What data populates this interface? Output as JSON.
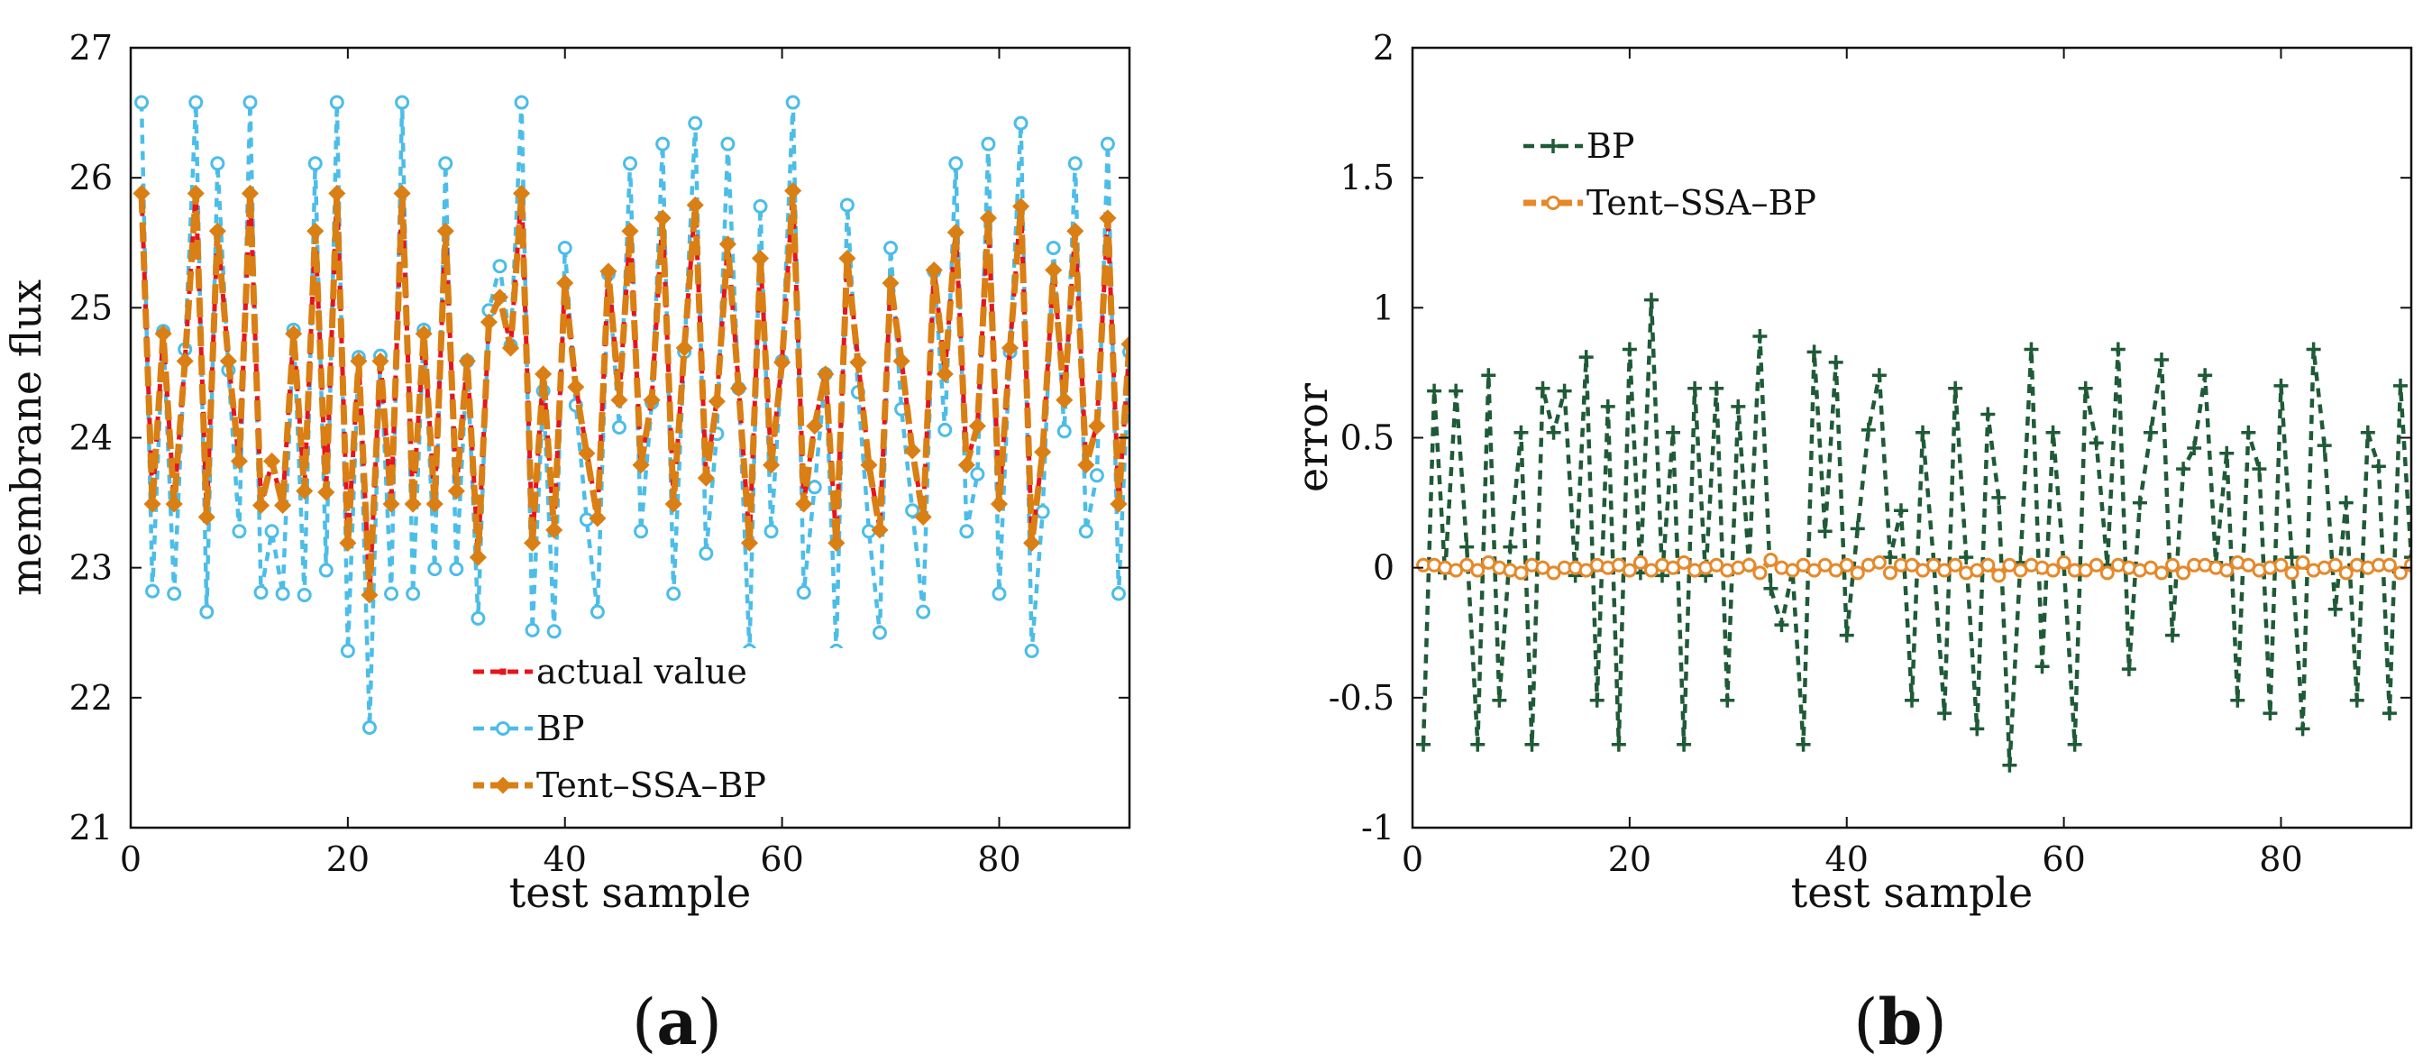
{
  "chart_data": [
    {
      "id": "a",
      "type": "line",
      "panel_label": "a",
      "xlabel": "test sample",
      "ylabel": "membrane flux",
      "xlim": [
        0,
        92
      ],
      "ylim": [
        21,
        27
      ],
      "xticks": [
        0,
        20,
        40,
        60,
        80
      ],
      "yticks": [
        21,
        22,
        23,
        24,
        25,
        26,
        27
      ],
      "legend_position": "bottom-center",
      "x": [
        1,
        2,
        3,
        4,
        5,
        6,
        7,
        8,
        9,
        10,
        11,
        12,
        13,
        14,
        15,
        16,
        17,
        18,
        19,
        20,
        21,
        22,
        23,
        24,
        25,
        26,
        27,
        28,
        29,
        30,
        31,
        32,
        33,
        34,
        35,
        36,
        37,
        38,
        39,
        40,
        41,
        42,
        43,
        44,
        45,
        46,
        47,
        48,
        49,
        50,
        51,
        52,
        53,
        54,
        55,
        56,
        57,
        58,
        59,
        60,
        61,
        62,
        63,
        64,
        65,
        66,
        67,
        68,
        69,
        70,
        71,
        72,
        73,
        74,
        75,
        76,
        77,
        78,
        79,
        80,
        81,
        82,
        83,
        84,
        85,
        86,
        87,
        88,
        89,
        90,
        91,
        92
      ],
      "series": [
        {
          "name": "actual value",
          "color": "#e8141c",
          "marker": "square",
          "values": [
            25.9,
            23.5,
            24.8,
            23.5,
            24.6,
            25.9,
            23.4,
            25.6,
            24.6,
            23.8,
            25.9,
            23.5,
            23.8,
            23.5,
            24.8,
            23.6,
            25.6,
            23.6,
            25.9,
            23.2,
            24.6,
            22.8,
            24.6,
            23.5,
            25.9,
            23.5,
            24.8,
            23.5,
            25.6,
            23.6,
            24.6,
            23.1,
            24.9,
            25.1,
            24.7,
            25.9,
            23.2,
            24.5,
            23.3,
            25.2,
            24.4,
            23.9,
            23.4,
            25.3,
            24.3,
            25.6,
            23.8,
            24.3,
            25.7,
            23.5,
            24.7,
            25.8,
            23.7,
            24.3,
            25.5,
            24.4,
            23.2,
            25.4,
            23.8,
            24.6,
            25.9,
            23.5,
            24.1,
            24.5,
            23.2,
            25.4,
            24.6,
            23.8,
            23.3,
            25.2,
            24.6,
            23.9,
            23.4,
            25.3,
            24.5,
            25.6,
            23.8,
            24.1,
            25.7,
            23.5,
            24.7,
            25.8,
            23.2,
            23.9,
            25.3,
            24.3,
            25.6,
            23.8,
            24.1,
            25.7,
            23.5,
            24.7
          ]
        },
        {
          "name": "BP",
          "color": "#4cbde8",
          "marker": "circle",
          "values": [
            26.58,
            22.82,
            24.82,
            22.8,
            24.68,
            26.58,
            22.66,
            26.11,
            24.52,
            23.28,
            26.58,
            22.81,
            23.28,
            22.8,
            24.83,
            22.79,
            26.11,
            22.98,
            26.58,
            22.36,
            24.62,
            21.77,
            24.63,
            22.8,
            26.58,
            22.8,
            24.83,
            22.99,
            26.11,
            22.99,
            24.59,
            22.61,
            24.98,
            25.32,
            24.71,
            26.58,
            22.52,
            24.36,
            22.51,
            25.46,
            24.25,
            23.37,
            22.66,
            25.26,
            24.08,
            26.11,
            23.28,
            24.27,
            26.26,
            22.8,
            24.66,
            26.42,
            23.11,
            24.03,
            26.26,
            24.38,
            22.36,
            25.78,
            23.28,
            24.59,
            26.58,
            22.81,
            23.62,
            24.49,
            22.36,
            25.79,
            24.35,
            23.28,
            22.5,
            25.46,
            24.22,
            23.44,
            22.66,
            25.28,
            24.06,
            26.11,
            23.28,
            23.72,
            26.26,
            22.8,
            24.66,
            26.42,
            22.36,
            23.43,
            25.46,
            24.05,
            26.11,
            23.28,
            23.71,
            26.26,
            22.8,
            24.66
          ]
        },
        {
          "name": "Tent–SSA–BP",
          "color": "#d97f14",
          "marker": "diamond",
          "values": [
            25.88,
            23.49,
            24.8,
            23.49,
            24.59,
            25.88,
            23.39,
            25.59,
            24.59,
            23.82,
            25.88,
            23.48,
            23.82,
            23.48,
            24.8,
            23.59,
            25.59,
            23.58,
            25.88,
            23.19,
            24.59,
            22.79,
            24.59,
            23.49,
            25.88,
            23.49,
            24.8,
            23.49,
            25.59,
            23.59,
            24.59,
            23.08,
            24.89,
            25.08,
            24.69,
            25.88,
            23.19,
            24.49,
            23.29,
            25.19,
            24.39,
            23.88,
            23.38,
            25.28,
            24.29,
            25.59,
            23.79,
            24.29,
            25.69,
            23.49,
            24.69,
            25.79,
            23.69,
            24.28,
            25.49,
            24.38,
            23.19,
            25.38,
            23.79,
            24.58,
            25.9,
            23.49,
            24.09,
            24.49,
            23.19,
            25.38,
            24.58,
            23.79,
            23.29,
            25.19,
            24.59,
            23.9,
            23.39,
            25.29,
            24.49,
            25.58,
            23.79,
            24.09,
            25.69,
            23.49,
            24.69,
            25.78,
            23.19,
            23.89,
            25.29,
            24.29,
            25.59,
            23.79,
            24.09,
            25.69,
            23.49,
            24.72
          ]
        }
      ]
    },
    {
      "id": "b",
      "type": "line",
      "panel_label": "b",
      "xlabel": "test sample",
      "ylabel": "error",
      "xlim": [
        0,
        92
      ],
      "ylim": [
        -1,
        2
      ],
      "xticks": [
        0,
        20,
        40,
        60,
        80
      ],
      "yticks": [
        -1,
        -0.5,
        0,
        0.5,
        1,
        1.5,
        2
      ],
      "ytick_labels": [
        "-1",
        "-0.5",
        "0",
        "0.5",
        "1",
        "1.5",
        "2"
      ],
      "legend_position": "top-left",
      "x": [
        1,
        2,
        3,
        4,
        5,
        6,
        7,
        8,
        9,
        10,
        11,
        12,
        13,
        14,
        15,
        16,
        17,
        18,
        19,
        20,
        21,
        22,
        23,
        24,
        25,
        26,
        27,
        28,
        29,
        30,
        31,
        32,
        33,
        34,
        35,
        36,
        37,
        38,
        39,
        40,
        41,
        42,
        43,
        44,
        45,
        46,
        47,
        48,
        49,
        50,
        51,
        52,
        53,
        54,
        55,
        56,
        57,
        58,
        59,
        60,
        61,
        62,
        63,
        64,
        65,
        66,
        67,
        68,
        69,
        70,
        71,
        72,
        73,
        74,
        75,
        76,
        77,
        78,
        79,
        80,
        81,
        82,
        83,
        84,
        85,
        86,
        87,
        88,
        89,
        90,
        91,
        92
      ],
      "series": [
        {
          "name": "BP",
          "color": "#1f5a37",
          "marker": "plus",
          "values": [
            -0.68,
            0.68,
            -0.02,
            0.68,
            0.08,
            -0.68,
            0.74,
            -0.51,
            0.08,
            0.52,
            -0.68,
            0.69,
            0.52,
            0.68,
            -0.03,
            0.81,
            -0.51,
            0.62,
            -0.68,
            0.84,
            -0.02,
            1.03,
            -0.03,
            0.52,
            -0.68,
            0.69,
            -0.03,
            0.69,
            -0.51,
            0.62,
            0.01,
            0.89,
            -0.08,
            -0.22,
            -0.01,
            -0.68,
            0.83,
            0.14,
            0.79,
            -0.26,
            0.15,
            0.53,
            0.74,
            0.04,
            0.22,
            -0.51,
            0.52,
            0.03,
            -0.56,
            0.69,
            0.04,
            -0.62,
            0.59,
            0.27,
            -0.76,
            0.02,
            0.84,
            -0.38,
            0.52,
            0.01,
            -0.68,
            0.69,
            0.48,
            0.01,
            0.84,
            -0.39,
            0.25,
            0.52,
            0.8,
            -0.26,
            0.38,
            0.46,
            0.74,
            0.02,
            0.44,
            -0.51,
            0.52,
            0.38,
            -0.56,
            0.7,
            0.04,
            -0.62,
            0.84,
            0.47,
            -0.16,
            0.25,
            -0.51,
            0.52,
            0.39,
            -0.56,
            0.7,
            0.04
          ]
        },
        {
          "name": "Tent–SSA–BP",
          "color": "#e5892a",
          "marker": "circle",
          "values": [
            0.01,
            0.01,
            0.0,
            -0.01,
            0.01,
            -0.01,
            0.02,
            0.0,
            -0.01,
            -0.02,
            0.01,
            0.0,
            -0.02,
            0.0,
            0.0,
            -0.01,
            0.01,
            0.0,
            0.01,
            -0.01,
            0.02,
            -0.01,
            0.01,
            0.0,
            0.02,
            -0.01,
            0.0,
            0.01,
            -0.01,
            0.0,
            0.01,
            -0.02,
            0.03,
            0.0,
            -0.01,
            0.01,
            -0.01,
            0.01,
            -0.01,
            0.01,
            -0.02,
            0.01,
            0.02,
            -0.02,
            0.01,
            0.01,
            -0.01,
            0.01,
            -0.01,
            0.01,
            -0.02,
            -0.01,
            0.01,
            -0.03,
            0.01,
            -0.01,
            0.01,
            0.0,
            -0.01,
            0.02,
            -0.01,
            -0.01,
            0.01,
            -0.02,
            0.01,
            0.0,
            -0.01,
            0.0,
            -0.02,
            0.01,
            -0.02,
            0.01,
            0.01,
            0.0,
            -0.01,
            0.02,
            0.01,
            -0.01,
            0.0,
            0.01,
            -0.02,
            0.02,
            -0.01,
            0.0,
            0.01,
            -0.02,
            0.01,
            0.0,
            0.01,
            0.01,
            -0.02,
            0.01
          ]
        }
      ]
    }
  ]
}
